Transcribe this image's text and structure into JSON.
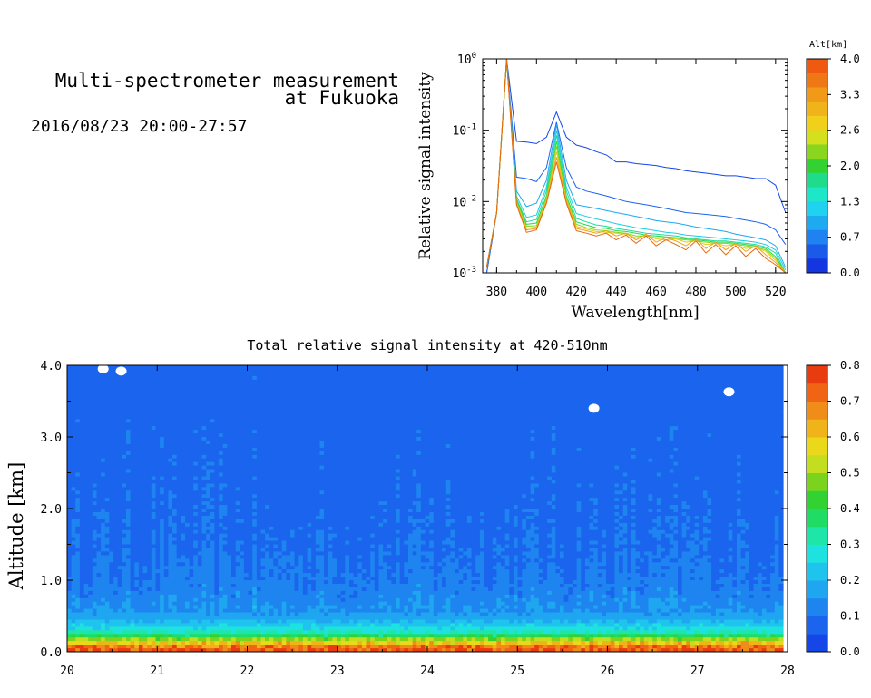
{
  "header": {
    "title_line1": "Multi-spectrometer measurement",
    "title_line2": "at Fukuoka",
    "datetime": "2016/08/23 20:00-27:57"
  },
  "chart_data": [
    {
      "type": "line",
      "panel": "spectrum",
      "xlabel": "Wavelength[nm]",
      "ylabel": "Relative signal intensity",
      "y_scale": "log",
      "xlim": [
        373,
        526
      ],
      "ylim": [
        0.001,
        1
      ],
      "x_ticks": [
        "380",
        "400",
        "420",
        "440",
        "460",
        "480",
        "500",
        "520"
      ],
      "y_ticks": [
        {
          "base": "10",
          "exp": "0"
        },
        {
          "base": "10",
          "exp": "-1"
        },
        {
          "base": "10",
          "exp": "-2"
        },
        {
          "base": "10",
          "exp": "-3"
        }
      ],
      "x": [
        375,
        380,
        385,
        390,
        395,
        400,
        405,
        410,
        415,
        420,
        425,
        430,
        435,
        440,
        445,
        450,
        455,
        460,
        465,
        470,
        475,
        480,
        485,
        490,
        495,
        500,
        505,
        510,
        515,
        520,
        525
      ],
      "series": [
        {
          "alt": 0.0,
          "color": "#1446e8",
          "values": [
            0.001,
            0.007,
            1.0,
            0.07,
            0.068,
            0.065,
            0.08,
            0.18,
            0.08,
            0.062,
            0.057,
            0.05,
            0.045,
            0.036,
            0.036,
            0.034,
            0.033,
            0.032,
            0.03,
            0.029,
            0.027,
            0.026,
            0.025,
            0.024,
            0.023,
            0.023,
            0.022,
            0.021,
            0.021,
            0.017,
            0.007
          ]
        },
        {
          "alt": 0.2,
          "color": "#1b64f0",
          "values": [
            0.001,
            0.007,
            1.0,
            0.022,
            0.021,
            0.019,
            0.03,
            0.13,
            0.03,
            0.016,
            0.014,
            0.013,
            0.012,
            0.011,
            0.01,
            0.0095,
            0.009,
            0.0085,
            0.008,
            0.0075,
            0.007,
            0.0068,
            0.0066,
            0.0064,
            0.0062,
            0.0058,
            0.0055,
            0.0052,
            0.0048,
            0.004,
            0.0025
          ]
        },
        {
          "alt": 0.5,
          "color": "#1ea8f0",
          "values": [
            0.0012,
            0.007,
            1.0,
            0.014,
            0.0085,
            0.0095,
            0.02,
            0.12,
            0.02,
            0.009,
            0.0085,
            0.008,
            0.0075,
            0.007,
            0.0066,
            0.0062,
            0.0058,
            0.0054,
            0.0052,
            0.005,
            0.0047,
            0.0044,
            0.0042,
            0.004,
            0.0038,
            0.0035,
            0.0033,
            0.0031,
            0.0029,
            0.0024,
            0.0012
          ]
        },
        {
          "alt": 0.9,
          "color": "#1ecbe6",
          "values": [
            0.0012,
            0.007,
            1.0,
            0.012,
            0.006,
            0.0065,
            0.016,
            0.1,
            0.016,
            0.0068,
            0.0062,
            0.0057,
            0.0053,
            0.0049,
            0.0046,
            0.0043,
            0.0041,
            0.0039,
            0.0037,
            0.0036,
            0.0034,
            0.0033,
            0.0032,
            0.0031,
            0.003,
            0.0029,
            0.0028,
            0.0027,
            0.0025,
            0.0021,
            0.0011
          ]
        },
        {
          "alt": 1.4,
          "color": "#1edc9a",
          "values": [
            0.0012,
            0.007,
            1.0,
            0.011,
            0.0052,
            0.0056,
            0.014,
            0.085,
            0.014,
            0.0058,
            0.0052,
            0.0047,
            0.0045,
            0.0042,
            0.004,
            0.0038,
            0.0036,
            0.0035,
            0.0034,
            0.0033,
            0.0031,
            0.003,
            0.0029,
            0.0028,
            0.0028,
            0.0027,
            0.0026,
            0.0025,
            0.0023,
            0.0019,
            0.001
          ]
        },
        {
          "alt": 1.9,
          "color": "#2ad84e",
          "values": [
            0.0012,
            0.007,
            1.0,
            0.0105,
            0.0048,
            0.005,
            0.012,
            0.07,
            0.012,
            0.0052,
            0.0047,
            0.0043,
            0.0042,
            0.0039,
            0.0038,
            0.0036,
            0.0034,
            0.0033,
            0.0032,
            0.0031,
            0.003,
            0.0029,
            0.0028,
            0.0027,
            0.0027,
            0.0026,
            0.0025,
            0.0024,
            0.0022,
            0.0017,
            0.001
          ]
        },
        {
          "alt": 2.4,
          "color": "#8ad61e",
          "values": [
            0.0012,
            0.007,
            1.0,
            0.01,
            0.0045,
            0.0046,
            0.011,
            0.06,
            0.011,
            0.0048,
            0.0043,
            0.004,
            0.0039,
            0.0037,
            0.0036,
            0.0033,
            0.0033,
            0.0031,
            0.0031,
            0.003,
            0.0029,
            0.0028,
            0.0027,
            0.0026,
            0.0026,
            0.0025,
            0.0024,
            0.0023,
            0.0021,
            0.0016,
            0.001
          ]
        },
        {
          "alt": 2.9,
          "color": "#e8c81a",
          "values": [
            0.0012,
            0.007,
            1.0,
            0.0095,
            0.0042,
            0.0044,
            0.0105,
            0.05,
            0.0105,
            0.0045,
            0.0041,
            0.0038,
            0.0037,
            0.0036,
            0.0035,
            0.0031,
            0.0034,
            0.003,
            0.0029,
            0.003,
            0.0027,
            0.0028,
            0.0025,
            0.0026,
            0.0024,
            0.0025,
            0.0022,
            0.0023,
            0.002,
            0.0015,
            0.001
          ]
        },
        {
          "alt": 3.4,
          "color": "#f0a018",
          "values": [
            0.0012,
            0.007,
            1.0,
            0.0092,
            0.004,
            0.0042,
            0.01,
            0.042,
            0.01,
            0.0042,
            0.0039,
            0.0036,
            0.0039,
            0.0033,
            0.0036,
            0.0029,
            0.0035,
            0.0027,
            0.0031,
            0.0028,
            0.0024,
            0.003,
            0.0022,
            0.0027,
            0.0021,
            0.0026,
            0.002,
            0.0024,
            0.0018,
            0.0014,
            0.001
          ]
        },
        {
          "alt": 3.9,
          "color": "#e46a10",
          "values": [
            0.0012,
            0.007,
            1.0,
            0.009,
            0.0037,
            0.004,
            0.0095,
            0.036,
            0.0095,
            0.0039,
            0.0036,
            0.0033,
            0.0036,
            0.0029,
            0.0034,
            0.0026,
            0.0033,
            0.0024,
            0.0029,
            0.0025,
            0.0021,
            0.0028,
            0.0019,
            0.0025,
            0.0018,
            0.0024,
            0.0017,
            0.0022,
            0.0016,
            0.0013,
            0.001
          ]
        }
      ],
      "colorbar": {
        "title": "Alt[km]",
        "labels": [
          "4.0",
          "3.3",
          "2.6",
          "2.0",
          "1.3",
          "0.7",
          "0.0"
        ],
        "colors": [
          "#f05a10",
          "#f07814",
          "#f09a18",
          "#f0b41a",
          "#f0d01a",
          "#d4e01e",
          "#8ad61e",
          "#32d232",
          "#1edc8c",
          "#1ee6c8",
          "#1ed2f0",
          "#1eaaf0",
          "#1e82f0",
          "#1b5ae8",
          "#1436e0"
        ]
      }
    },
    {
      "type": "heatmap",
      "panel": "time-altitude",
      "title": "Total relative signal intensity at 420-510nm",
      "ylabel": "Altitude [km]",
      "xlim": [
        20,
        28
      ],
      "ylim": [
        0,
        4
      ],
      "data_end_x": 27.95,
      "x_ticks": [
        "20",
        "21",
        "22",
        "23",
        "24",
        "25",
        "26",
        "27",
        "28"
      ],
      "y_ticks": [
        "0.0",
        "1.0",
        "2.0",
        "3.0",
        "4.0"
      ],
      "altitude_km": [
        0.05,
        0.15,
        0.25,
        0.35,
        0.45,
        0.55,
        0.7,
        0.9,
        1.1,
        1.4,
        1.8,
        2.2,
        2.6,
        3.0,
        3.4,
        3.8
      ],
      "typical_intensity": [
        0.75,
        0.55,
        0.33,
        0.25,
        0.19,
        0.15,
        0.13,
        0.11,
        0.1,
        0.09,
        0.085,
        0.08,
        0.075,
        0.075,
        0.07,
        0.07
      ],
      "missing_patches": [
        {
          "x": 20.6,
          "alt": 3.92
        },
        {
          "x": 20.4,
          "alt": 3.95
        },
        {
          "x": 25.85,
          "alt": 3.4
        },
        {
          "x": 27.35,
          "alt": 3.63
        }
      ],
      "colorbar": {
        "labels": [
          "0.8",
          "0.7",
          "0.6",
          "0.5",
          "0.4",
          "0.3",
          "0.2",
          "0.1",
          "0.0"
        ],
        "levels": [
          0,
          0.05,
          0.1,
          0.15,
          0.2,
          0.25,
          0.3,
          0.35,
          0.4,
          0.45,
          0.5,
          0.55,
          0.6,
          0.65,
          0.7,
          0.75,
          0.8
        ],
        "colors": [
          "#1446e8",
          "#1a64ee",
          "#1e84f0",
          "#1ea6f0",
          "#1ec4ee",
          "#1ee2e0",
          "#1ee6a8",
          "#1edc64",
          "#32d232",
          "#7ad41e",
          "#c2de1e",
          "#ecd81a",
          "#f0b41a",
          "#f08c18",
          "#f06414",
          "#e83c10"
        ]
      }
    }
  ]
}
